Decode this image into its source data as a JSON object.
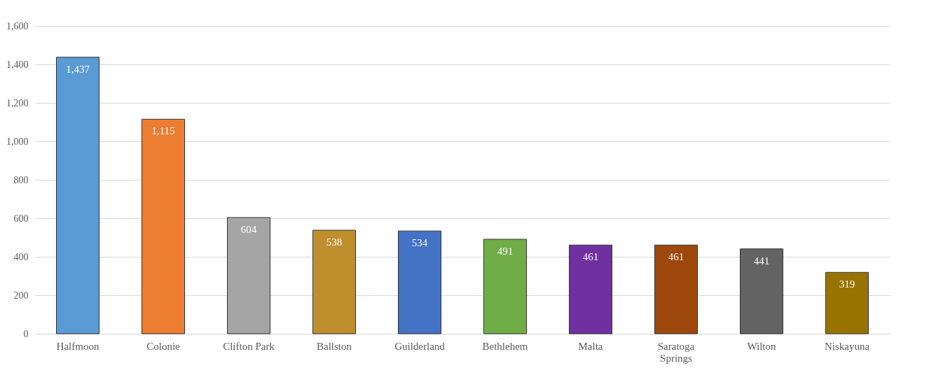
{
  "chart_data": {
    "type": "bar",
    "categories": [
      "Halfmoon",
      "Colonie",
      "Clifton Park",
      "Ballston",
      "Guilderland",
      "Bethlehem",
      "Malta",
      "Saratoga Springs",
      "Wilton",
      "Niskayuna"
    ],
    "values": [
      1437,
      1115,
      604,
      538,
      534,
      491,
      461,
      461,
      441,
      319
    ],
    "value_labels": [
      "1,437",
      "1,115",
      "604",
      "538",
      "534",
      "491",
      "461",
      "461",
      "441",
      "319"
    ],
    "colors": [
      "#5b9bd5",
      "#ed7d31",
      "#a5a5a5",
      "#bf8f2e",
      "#4472c4",
      "#70ad47",
      "#7030a0",
      "#9e480e",
      "#636363",
      "#997300"
    ],
    "ylim": [
      0,
      1600
    ],
    "yticks": [
      0,
      {
        "value": 200,
        "label": "200"
      },
      {
        "value": 400,
        "label": "400"
      },
      {
        "value": 600,
        "label": "600"
      },
      {
        "value": 800,
        "label": "800"
      },
      {
        "value": 1000,
        "label": "1,000"
      },
      {
        "value": 1200,
        "label": "1,200"
      },
      {
        "value": 1400,
        "label": "1,400"
      },
      {
        "value": 1600,
        "label": "1,600"
      }
    ],
    "grid": "y",
    "legend": false
  }
}
